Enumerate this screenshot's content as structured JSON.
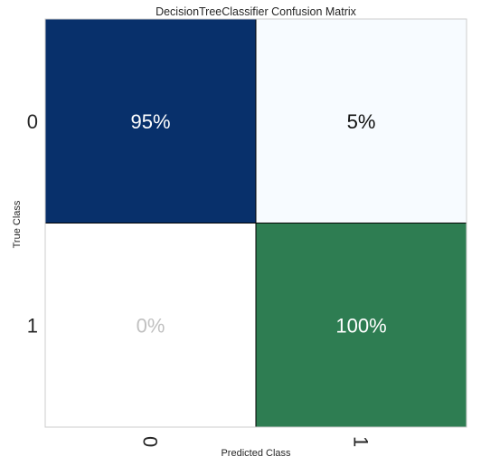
{
  "chart_data": {
    "type": "heatmap",
    "title": "DecisionTreeClassifier Confusion Matrix",
    "xlabel": "Predicted Class",
    "ylabel": "True Class",
    "x_categories": [
      "0",
      "1"
    ],
    "y_categories": [
      "0",
      "1"
    ],
    "cells": [
      {
        "true": "0",
        "pred": "0",
        "value": 95,
        "label": "95%",
        "color": "#08306b",
        "text_color": "#ffffff"
      },
      {
        "true": "0",
        "pred": "1",
        "value": 5,
        "label": "5%",
        "color": "#f7fbff",
        "text_color": "#111111"
      },
      {
        "true": "1",
        "pred": "0",
        "value": 0,
        "label": "0%",
        "color": "#ffffff",
        "text_color": "#c0c0c0"
      },
      {
        "true": "1",
        "pred": "1",
        "value": 100,
        "label": "100%",
        "color": "#2e7d52",
        "text_color": "#ffffff"
      }
    ],
    "grid": false
  }
}
